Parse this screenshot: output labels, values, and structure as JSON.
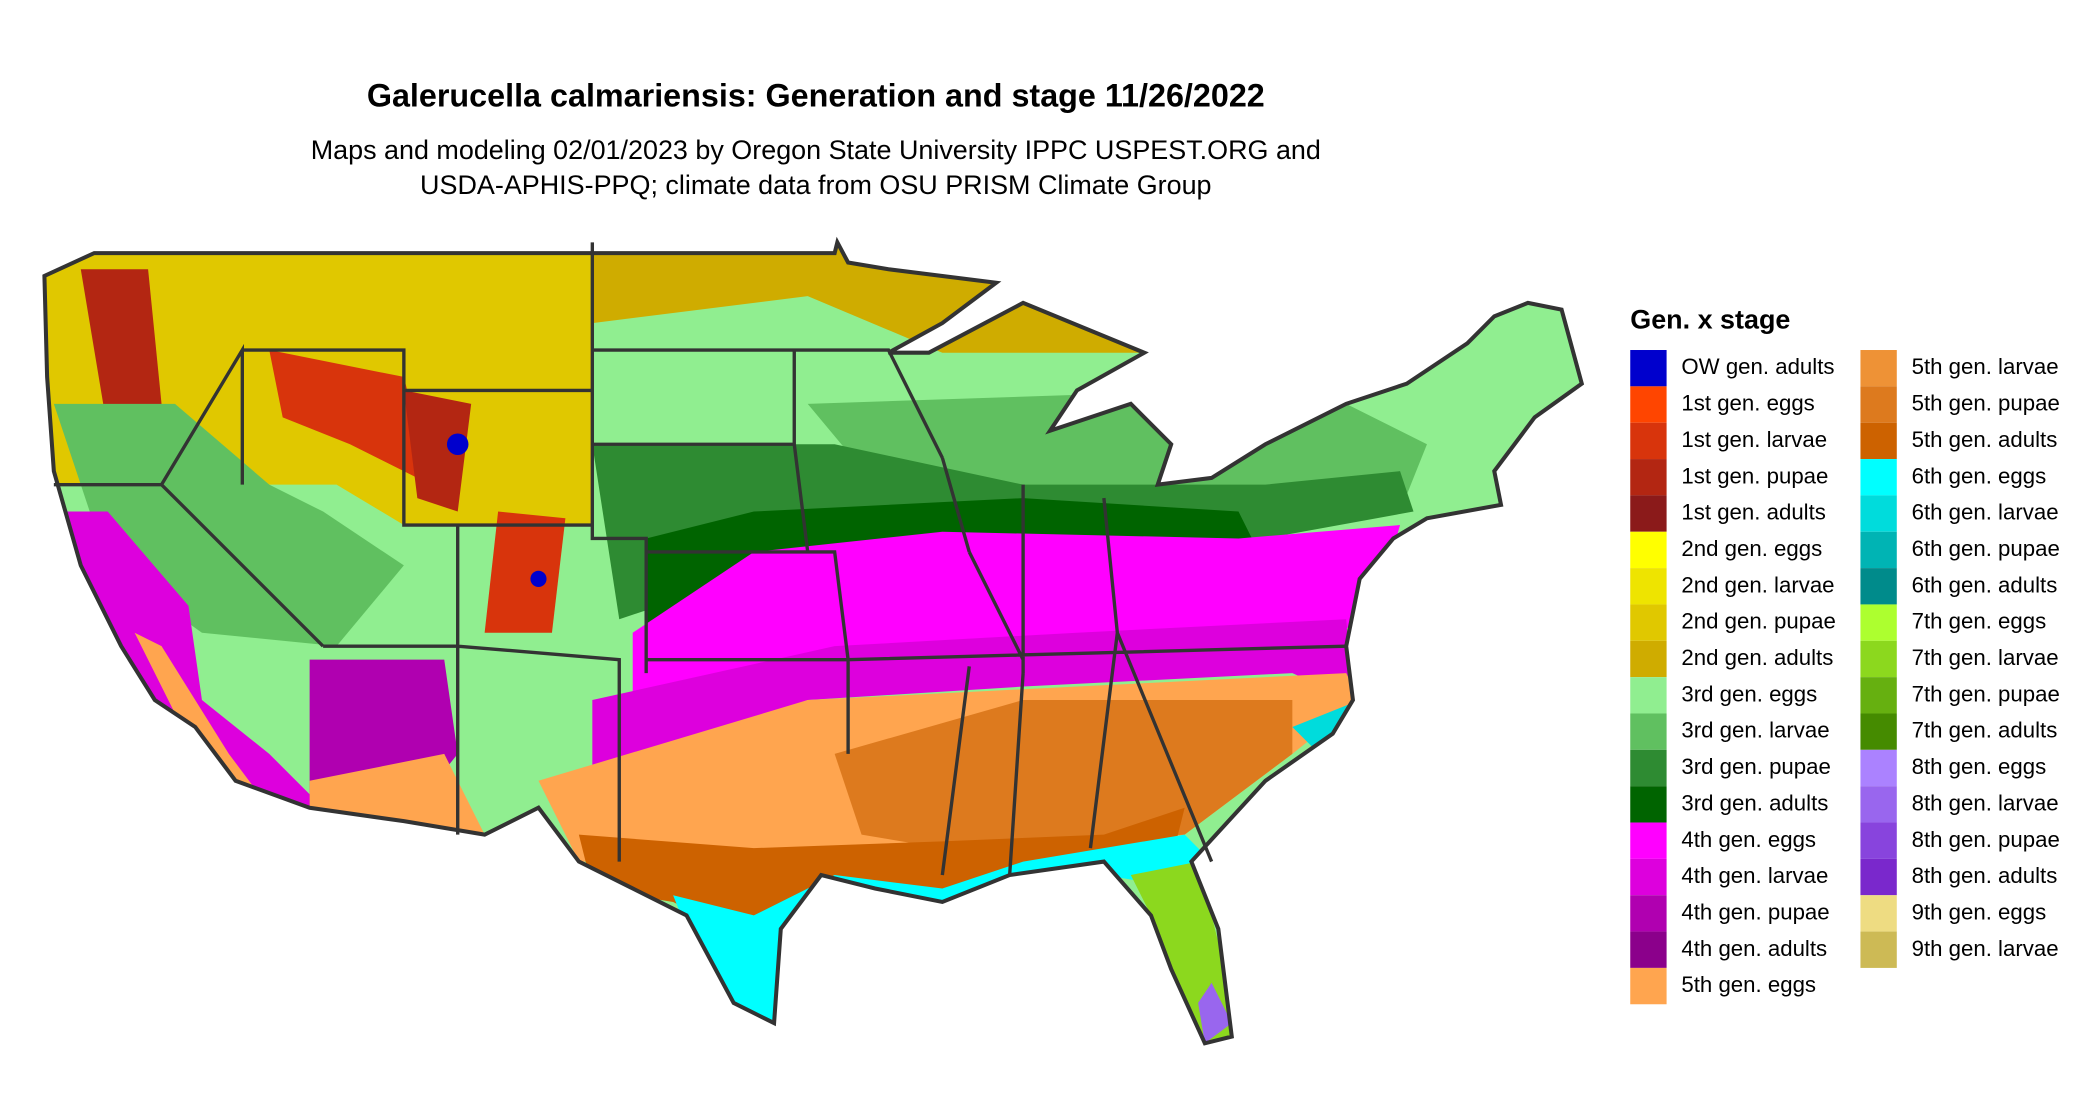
{
  "title": "Galerucella calmariensis: Generation and stage 11/26/2022",
  "subtitle_line1": "Maps and modeling 02/01/2023 by Oregon State University IPPC USPEST.ORG and",
  "subtitle_line2": "USDA-APHIS-PPQ; climate data from OSU PRISM Climate Group",
  "legend": {
    "title": "Gen. x stage",
    "items": [
      {
        "label": "OW gen. adults",
        "color": "#0000cd"
      },
      {
        "label": "1st gen. eggs",
        "color": "#ff4500"
      },
      {
        "label": "1st gen. larvae",
        "color": "#d8340c"
      },
      {
        "label": "1st gen. pupae",
        "color": "#b32612"
      },
      {
        "label": "1st gen. adults",
        "color": "#8b1a1a"
      },
      {
        "label": "2nd gen. eggs",
        "color": "#ffff00"
      },
      {
        "label": "2nd gen. larvae",
        "color": "#eee400"
      },
      {
        "label": "2nd gen. pupae",
        "color": "#e0c800"
      },
      {
        "label": "2nd gen. adults",
        "color": "#cfac00"
      },
      {
        "label": "3rd gen. eggs",
        "color": "#90ee90"
      },
      {
        "label": "3rd gen. larvae",
        "color": "#60c060"
      },
      {
        "label": "3rd gen. pupae",
        "color": "#2e8b32"
      },
      {
        "label": "3rd gen. adults",
        "color": "#006400"
      },
      {
        "label": "4th gen. eggs",
        "color": "#ff00ff"
      },
      {
        "label": "4th gen. larvae",
        "color": "#dd00dd"
      },
      {
        "label": "4th gen. pupae",
        "color": "#b000b0"
      },
      {
        "label": "4th gen. adults",
        "color": "#8b008b"
      },
      {
        "label": "5th gen. eggs",
        "color": "#ffa54f"
      },
      {
        "label": "5th gen. larvae",
        "color": "#ee9236"
      },
      {
        "label": "5th gen. pupae",
        "color": "#dd7a1e"
      },
      {
        "label": "5th gen. adults",
        "color": "#cd6200"
      },
      {
        "label": "6th gen. eggs",
        "color": "#00ffff"
      },
      {
        "label": "6th gen. larvae",
        "color": "#00dcdc"
      },
      {
        "label": "6th gen. pupae",
        "color": "#00b4b4"
      },
      {
        "label": "6th gen. adults",
        "color": "#008b8b"
      },
      {
        "label": "7th gen. eggs",
        "color": "#adff2f"
      },
      {
        "label": "7th gen. larvae",
        "color": "#8cd81e"
      },
      {
        "label": "7th gen. pupae",
        "color": "#66b010"
      },
      {
        "label": "7th gen. adults",
        "color": "#458b00"
      },
      {
        "label": "8th gen. eggs",
        "color": "#ab82ff"
      },
      {
        "label": "8th gen. larvae",
        "color": "#9966ee"
      },
      {
        "label": "8th gen. pupae",
        "color": "#8844dd"
      },
      {
        "label": "8th gen. adults",
        "color": "#7a28cc"
      },
      {
        "label": "9th gen. eggs",
        "color": "#eedc82"
      },
      {
        "label": "9th gen. larvae",
        "color": "#cdba55"
      }
    ]
  }
}
